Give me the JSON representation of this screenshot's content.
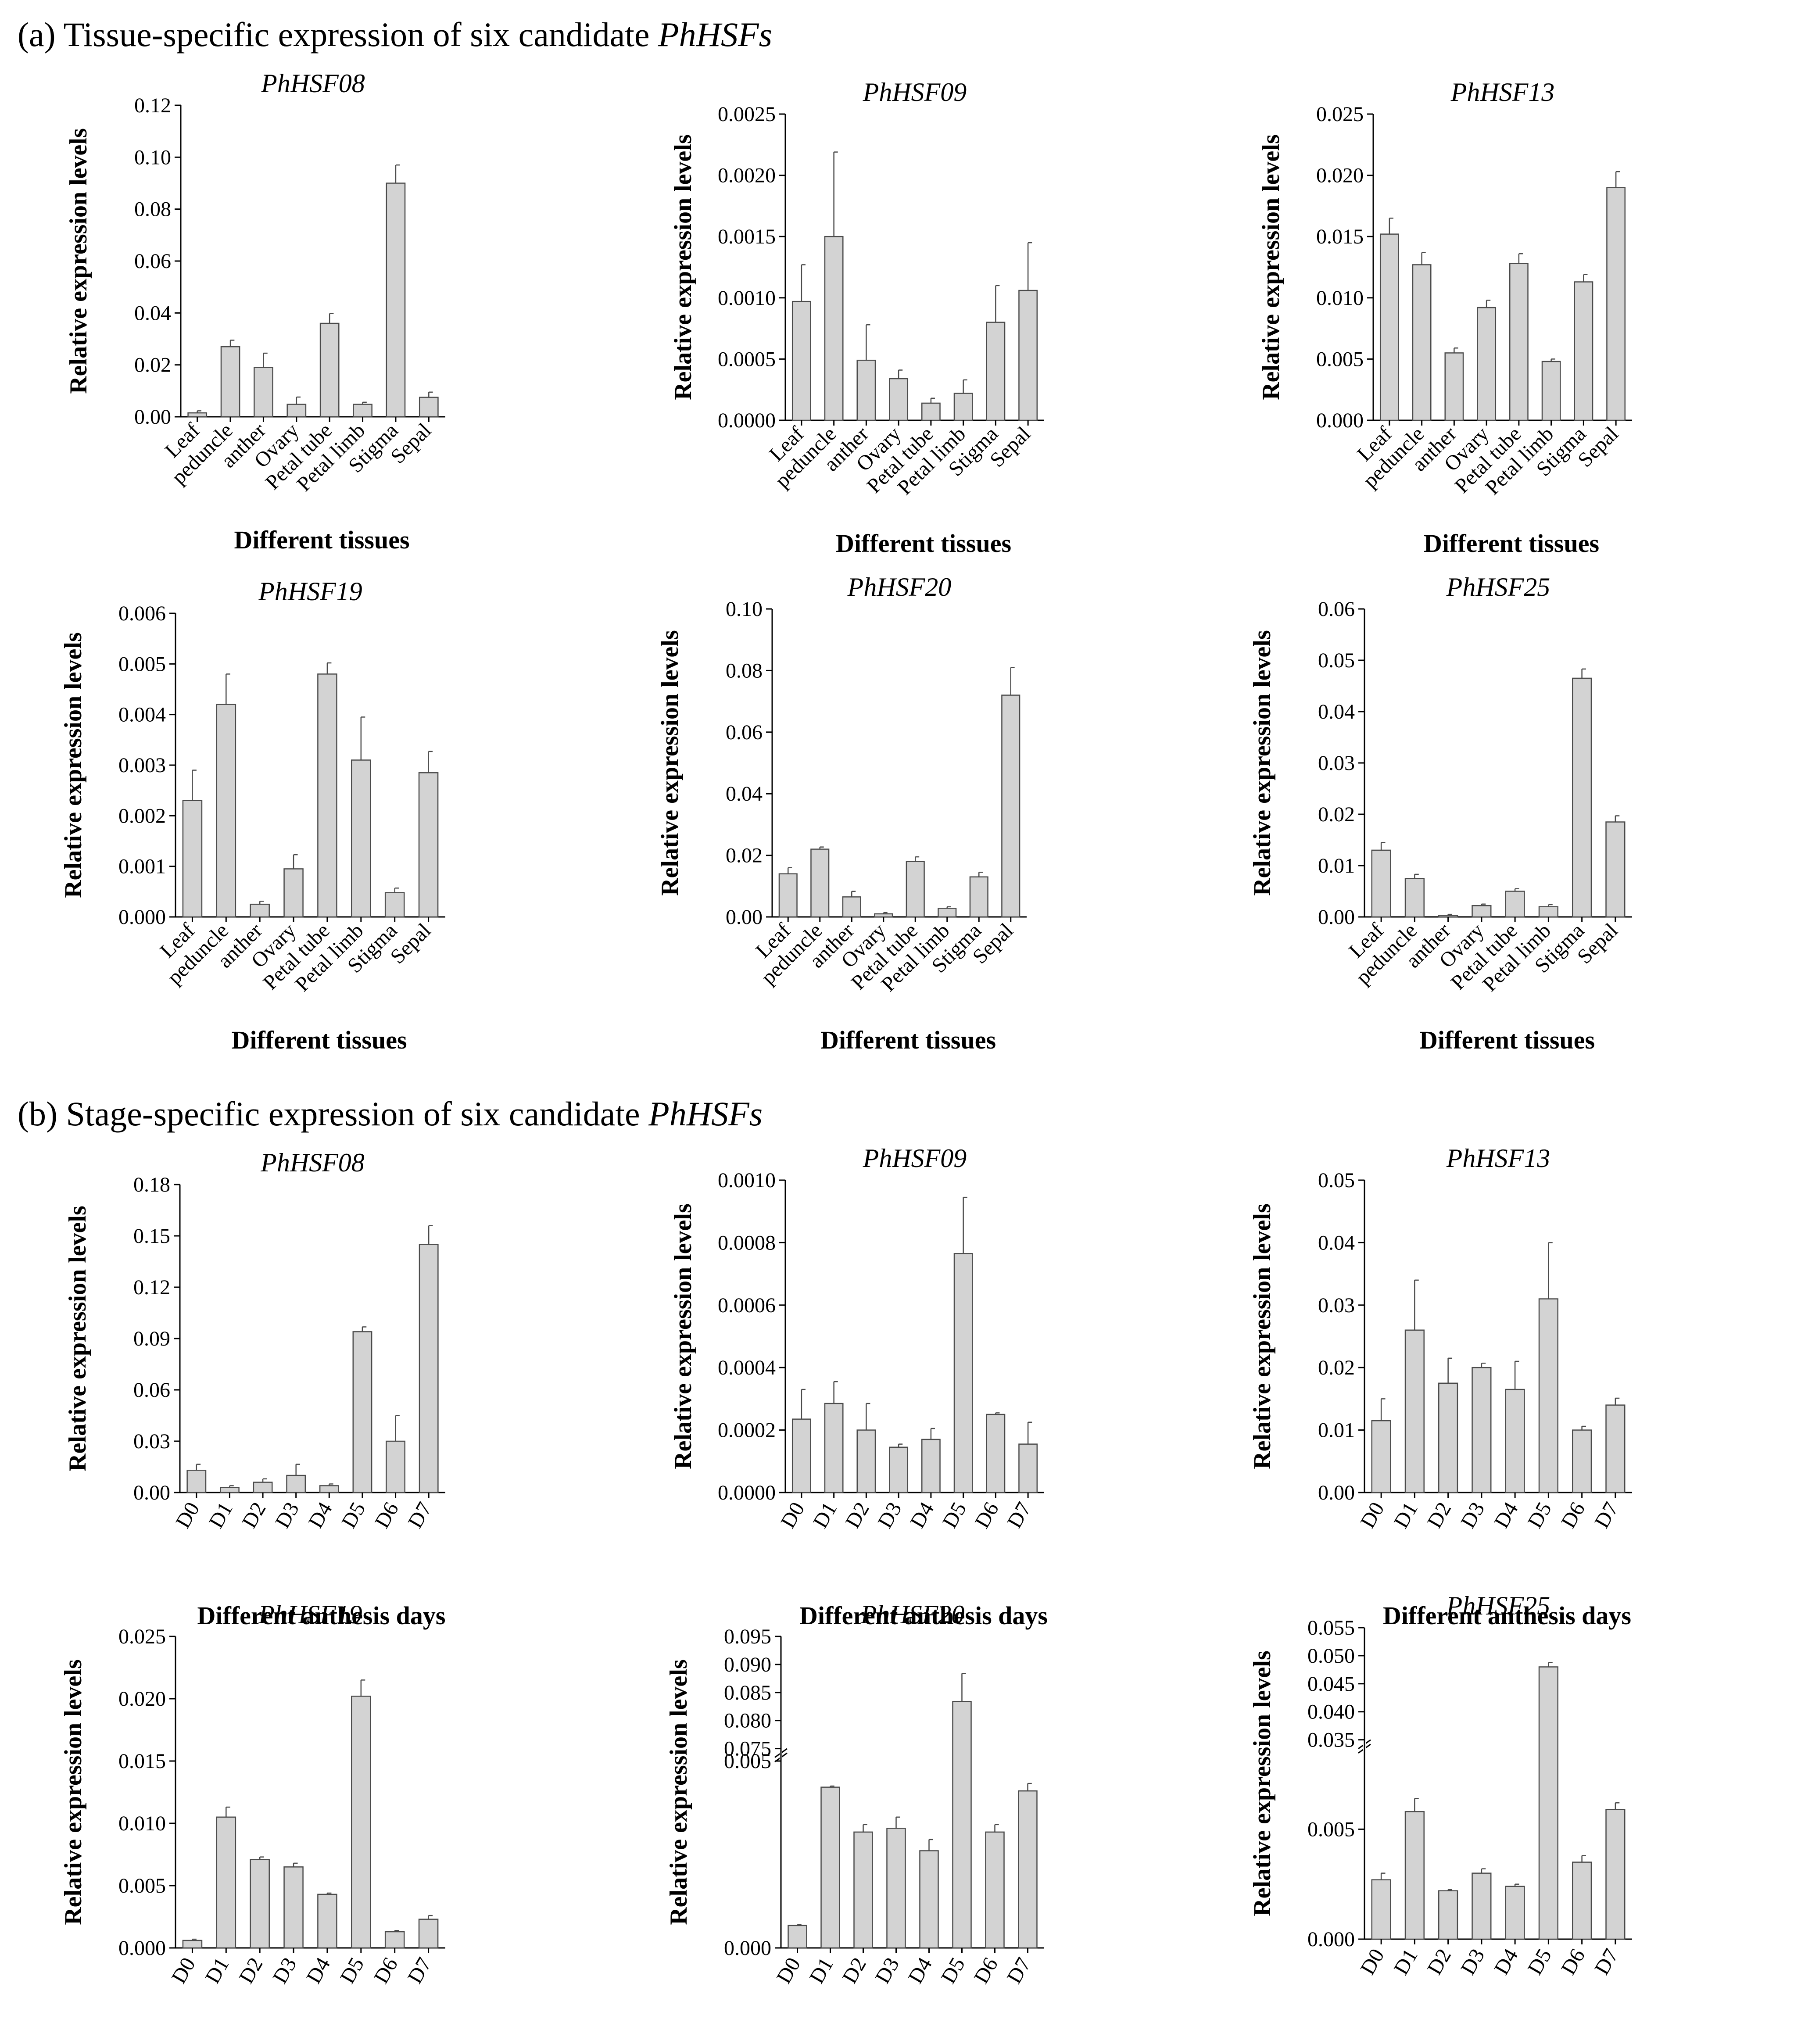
{
  "headings": {
    "a": {
      "text": "(a) Tissue-specific expression of six candidate ",
      "italic": "PhHSFs"
    },
    "b": {
      "text": "(b) Stage-specific expression of six candidate ",
      "italic": "PhHSFs"
    }
  },
  "colors": {
    "bar_fill": "#d3d3d3",
    "bar_stroke": "#4a4a4a",
    "axis": "#000000"
  },
  "chart_data": [
    {
      "id": "a-PhHSF08",
      "type": "bar",
      "title": "PhHSF08",
      "xlabel": "Different tissues",
      "ylabel": "Relative expression levels",
      "categories": [
        "Leaf",
        "peduncle",
        "anther",
        "Ovary",
        "Petal tube",
        "Petal limb",
        "Stigma",
        "Sepal"
      ],
      "values": [
        0.0015,
        0.027,
        0.019,
        0.0048,
        0.036,
        0.0048,
        0.09,
        0.0075
      ],
      "errors": [
        0.0008,
        0.0025,
        0.0055,
        0.0028,
        0.0038,
        0.0008,
        0.007,
        0.002
      ],
      "yticks": [
        "0.00",
        "0.02",
        "0.04",
        "0.06",
        "0.08",
        "0.10",
        "0.12"
      ],
      "ylim": [
        0,
        0.12
      ],
      "label_rotation": -45
    },
    {
      "id": "a-PhHSF09",
      "type": "bar",
      "title": "PhHSF09",
      "xlabel": "Different tissues",
      "ylabel": "Relative expression levels",
      "categories": [
        "Leaf",
        "peduncle",
        "anther",
        "Ovary",
        "Petal tube",
        "Petal limb",
        "Stigma",
        "Sepal"
      ],
      "values": [
        0.00097,
        0.0015,
        0.00049,
        0.00034,
        0.00014,
        0.00022,
        0.0008,
        0.00106
      ],
      "errors": [
        0.0003,
        0.00069,
        0.00029,
        7e-05,
        4e-05,
        0.00011,
        0.0003,
        0.00039
      ],
      "yticks": [
        "0.0000",
        "0.0005",
        "0.0010",
        "0.0015",
        "0.0020",
        "0.0025"
      ],
      "ylim": [
        0,
        0.0025
      ],
      "label_rotation": -45
    },
    {
      "id": "a-PhHSF13",
      "type": "bar",
      "title": "PhHSF13",
      "xlabel": "Different tissues",
      "ylabel": "Relative expression levels",
      "categories": [
        "Leaf",
        "peduncle",
        "anther",
        "Ovary",
        "Petal tube",
        "Petal limb",
        "Stigma",
        "Sepal"
      ],
      "values": [
        0.0152,
        0.0127,
        0.0055,
        0.0092,
        0.0128,
        0.0048,
        0.0113,
        0.019
      ],
      "errors": [
        0.0013,
        0.001,
        0.0004,
        0.0006,
        0.0008,
        0.0002,
        0.0006,
        0.0013
      ],
      "yticks": [
        "0.000",
        "0.005",
        "0.010",
        "0.015",
        "0.020",
        "0.025"
      ],
      "ylim": [
        0,
        0.025
      ],
      "label_rotation": -45
    },
    {
      "id": "a-PhHSF19",
      "type": "bar",
      "title": "PhHSF19",
      "xlabel": "Different tissues",
      "ylabel": "Relative expression levels",
      "categories": [
        "Leaf",
        "peduncle",
        "anther",
        "Ovary",
        "Petal tube",
        "Petal limb",
        "Stigma",
        "Sepal"
      ],
      "values": [
        0.0023,
        0.0042,
        0.00025,
        0.00095,
        0.0048,
        0.0031,
        0.00048,
        0.00285
      ],
      "errors": [
        0.0006,
        0.0006,
        6e-05,
        0.00028,
        0.00022,
        0.00085,
        9e-05,
        0.00042
      ],
      "yticks": [
        "0.000",
        "0.001",
        "0.002",
        "0.003",
        "0.004",
        "0.005",
        "0.006"
      ],
      "ylim": [
        0,
        0.006
      ],
      "label_rotation": -45
    },
    {
      "id": "a-PhHSF20",
      "type": "bar",
      "title": "PhHSF20",
      "xlabel": "Different tissues",
      "ylabel": "Relative expression levels",
      "categories": [
        "Leaf",
        "peduncle",
        "anther",
        "Ovary",
        "Petal tube",
        "Petal limb",
        "Stigma",
        "Sepal"
      ],
      "values": [
        0.014,
        0.022,
        0.0065,
        0.001,
        0.018,
        0.0028,
        0.013,
        0.072
      ],
      "errors": [
        0.002,
        0.0007,
        0.0018,
        0.0004,
        0.0015,
        0.0005,
        0.0015,
        0.009
      ],
      "yticks": [
        "0.00",
        "0.02",
        "0.04",
        "0.06",
        "0.08",
        "0.10"
      ],
      "ylim": [
        0,
        0.1
      ],
      "label_rotation": -45
    },
    {
      "id": "a-PhHSF25",
      "type": "bar",
      "title": "PhHSF25",
      "xlabel": "Different tissues",
      "ylabel": "Relative expression levels",
      "categories": [
        "Leaf",
        "peduncle",
        "anther",
        "Ovary",
        "Petal tube",
        "Petal limb",
        "Stigma",
        "Sepal"
      ],
      "values": [
        0.013,
        0.0075,
        0.0003,
        0.0022,
        0.005,
        0.002,
        0.0465,
        0.0185
      ],
      "errors": [
        0.0015,
        0.0008,
        0.0002,
        0.0003,
        0.0005,
        0.0004,
        0.0018,
        0.0012
      ],
      "yticks": [
        "0.00",
        "0.01",
        "0.02",
        "0.03",
        "0.04",
        "0.05",
        "0.06"
      ],
      "ylim": [
        0,
        0.06
      ],
      "label_rotation": -45
    },
    {
      "id": "b-PhHSF08",
      "type": "bar",
      "title": "PhHSF08",
      "xlabel": "Different anthesis days",
      "ylabel": "Relative expression levels",
      "categories": [
        "D0",
        "D1",
        "D2",
        "D3",
        "D4",
        "D5",
        "D6",
        "D7"
      ],
      "values": [
        0.013,
        0.003,
        0.006,
        0.01,
        0.004,
        0.094,
        0.03,
        0.145
      ],
      "errors": [
        0.0035,
        0.001,
        0.002,
        0.0065,
        0.001,
        0.0028,
        0.015,
        0.011
      ],
      "yticks": [
        "0.00",
        "0.03",
        "0.06",
        "0.09",
        "0.12",
        "0.15",
        "0.18"
      ],
      "ylim": [
        0,
        0.18
      ],
      "label_rotation": -60
    },
    {
      "id": "b-PhHSF09",
      "type": "bar",
      "title": "PhHSF09",
      "xlabel": "Different anthesis days",
      "ylabel": "Relative expression levels",
      "categories": [
        "D0",
        "D1",
        "D2",
        "D3",
        "D4",
        "D5",
        "D6",
        "D7"
      ],
      "values": [
        0.000235,
        0.000285,
        0.0002,
        0.000145,
        0.00017,
        0.000765,
        0.00025,
        0.000155
      ],
      "errors": [
        9.5e-05,
        7e-05,
        8.5e-05,
        1e-05,
        3.5e-05,
        0.00018,
        5e-06,
        7e-05
      ],
      "yticks": [
        "0.0000",
        "0.0002",
        "0.0004",
        "0.0006",
        "0.0008",
        "0.0010"
      ],
      "ylim": [
        0,
        0.001
      ],
      "label_rotation": -60
    },
    {
      "id": "b-PhHSF13",
      "type": "bar",
      "title": "PhHSF13",
      "xlabel": "Different anthesis days",
      "ylabel": "Relative expression levels",
      "categories": [
        "D0",
        "D1",
        "D2",
        "D3",
        "D4",
        "D5",
        "D6",
        "D7"
      ],
      "values": [
        0.0115,
        0.026,
        0.0175,
        0.02,
        0.0165,
        0.031,
        0.01,
        0.014
      ],
      "errors": [
        0.0035,
        0.008,
        0.004,
        0.0007,
        0.0045,
        0.009,
        0.0006,
        0.0011
      ],
      "yticks": [
        "0.00",
        "0.01",
        "0.02",
        "0.03",
        "0.04",
        "0.05"
      ],
      "ylim": [
        0,
        0.05
      ],
      "label_rotation": -60
    },
    {
      "id": "b-PhHSF19",
      "type": "bar",
      "title": "PhHSF19",
      "xlabel": "Different anthesis days",
      "ylabel": "Relative expression levels",
      "categories": [
        "D0",
        "D1",
        "D2",
        "D3",
        "D4",
        "D5",
        "D6",
        "D7"
      ],
      "values": [
        0.0006,
        0.0105,
        0.0071,
        0.0065,
        0.0043,
        0.0202,
        0.0013,
        0.0023
      ],
      "errors": [
        0.0001,
        0.0008,
        0.0002,
        0.0003,
        0.0001,
        0.0013,
        0.0001,
        0.0003
      ],
      "yticks": [
        "0.000",
        "0.005",
        "0.010",
        "0.015",
        "0.020",
        "0.025"
      ],
      "ylim": [
        0,
        0.025
      ],
      "label_rotation": -60
    },
    {
      "id": "b-PhHSF20",
      "type": "bar",
      "title": "PhHSF20",
      "xlabel": "Different anthesis days",
      "ylabel": "Relative expression levels",
      "categories": [
        "D0",
        "D1",
        "D2",
        "D3",
        "D4",
        "D5",
        "D6",
        "D7"
      ],
      "values": [
        0.0006,
        0.0043,
        0.0031,
        0.0032,
        0.0026,
        0.0834,
        0.0031,
        0.0042
      ],
      "errors": [
        3e-05,
        3e-05,
        0.0002,
        0.0003,
        0.0003,
        0.005,
        0.0002,
        0.0002
      ],
      "yticks_lower": [
        "0.000",
        "0.005"
      ],
      "yticks_upper": [
        "0.075",
        "0.080",
        "0.085",
        "0.090",
        "0.095"
      ],
      "ylim_lower": [
        0,
        0.005
      ],
      "ylim_upper": [
        0.075,
        0.095
      ],
      "broken_axis": true,
      "label_rotation": -60
    },
    {
      "id": "b-PhHSF25",
      "type": "bar",
      "title": "PhHSF25",
      "xlabel": "Different anthesis days",
      "ylabel": "Relative expression levels",
      "categories": [
        "D0",
        "D1",
        "D2",
        "D3",
        "D4",
        "D5",
        "D6",
        "D7"
      ],
      "values": [
        0.0027,
        0.0058,
        0.0022,
        0.003,
        0.0024,
        0.048,
        0.0035,
        0.0059
      ],
      "errors": [
        0.0003,
        0.0006,
        5e-05,
        0.0002,
        0.0001,
        0.0008,
        0.0003,
        0.0003
      ],
      "yticks_lower": [
        "0.000",
        "0.005"
      ],
      "yticks_upper": [
        "0.035",
        "0.040",
        "0.045",
        "0.050",
        "0.055"
      ],
      "ylim_lower": [
        0,
        0.0085
      ],
      "ylim_upper": [
        0.035,
        0.055
      ],
      "broken_axis": true,
      "label_rotation": -60
    }
  ]
}
